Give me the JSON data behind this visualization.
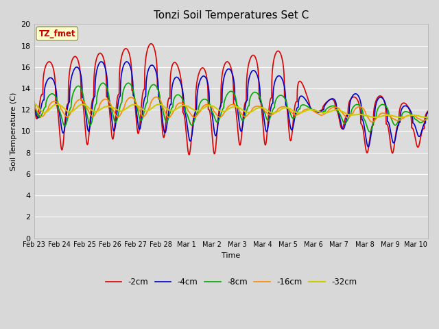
{
  "title": "Tonzi Soil Temperatures Set C",
  "xlabel": "Time",
  "ylabel": "Soil Temperature (C)",
  "ylim": [
    0,
    20
  ],
  "yticks": [
    0,
    2,
    4,
    6,
    8,
    10,
    12,
    14,
    16,
    18,
    20
  ],
  "xtick_labels": [
    "Feb 23",
    "Feb 24",
    "Feb 25",
    "Feb 26",
    "Feb 27",
    "Feb 28",
    "Mar 1",
    "Mar 2",
    "Mar 3",
    "Mar 4",
    "Mar 5",
    "Mar 6",
    "Mar 7",
    "Mar 8",
    "Mar 9",
    "Mar 10"
  ],
  "annotation_text": "TZ_fmet",
  "annotation_color": "#cc0000",
  "annotation_bg": "#ffffcc",
  "fig_facecolor": "#d8d8d8",
  "ax_facecolor": "#dcdcdc",
  "series": {
    "neg2cm": {
      "label": "-2cm",
      "color": "#dd0000",
      "linewidth": 1.2
    },
    "neg4cm": {
      "label": "-4cm",
      "color": "#0000cc",
      "linewidth": 1.2
    },
    "neg8cm": {
      "label": "-8cm",
      "color": "#00aa00",
      "linewidth": 1.2
    },
    "neg16cm": {
      "label": "-16cm",
      "color": "#ff8800",
      "linewidth": 1.2
    },
    "neg32cm": {
      "label": "-32cm",
      "color": "#cccc00",
      "linewidth": 1.5
    }
  }
}
